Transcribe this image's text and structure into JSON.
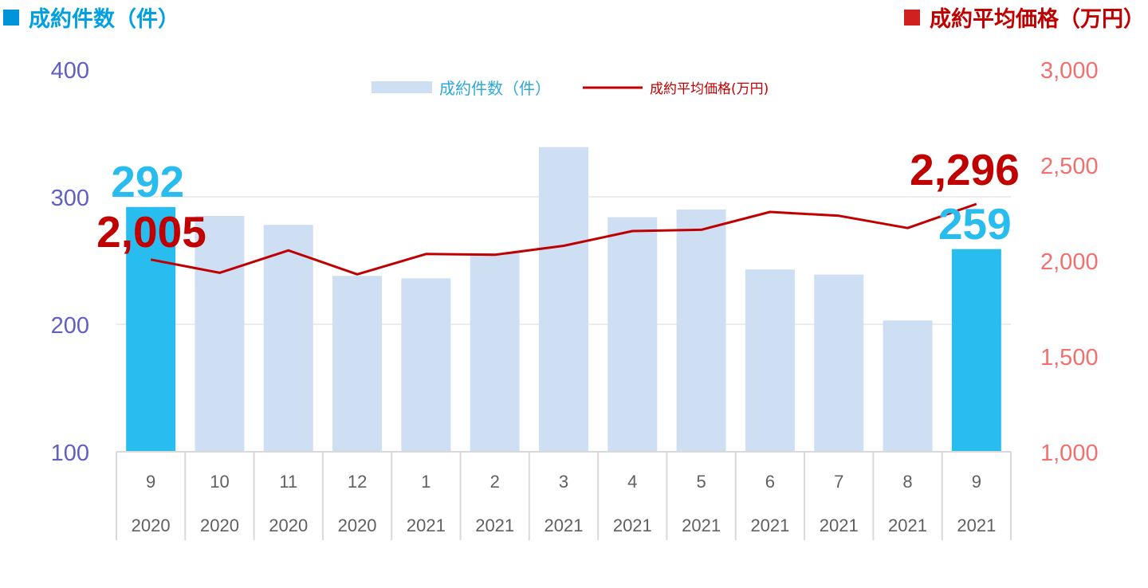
{
  "headers": {
    "left": {
      "label": "成約件数（件）"
    },
    "right": {
      "label": "成約平均価格（万円）"
    }
  },
  "colors": {
    "bar_highlight": "#29BDEF",
    "bar_normal": "#CFDFF3",
    "line": "#C00000",
    "left_axis_text": "#6060C0",
    "right_axis_text": "#F07070",
    "left_header": "#009FE0",
    "right_header": "#C00000",
    "left_header_square": "#0095D9",
    "right_header_square": "#D02020",
    "big_count_label": "#29BDEF",
    "big_price_label": "#C00000",
    "legend_bar_text": "#2DA8DC",
    "legend_line_text": "#C00000",
    "category_text": "#606060",
    "grid": "#D9D9D9"
  },
  "chart_data": {
    "type": "bar",
    "categories": [
      "9",
      "10",
      "11",
      "12",
      "1",
      "2",
      "3",
      "4",
      "5",
      "6",
      "7",
      "8",
      "9"
    ],
    "category_years": [
      "2020",
      "2020",
      "2020",
      "2020",
      "2021",
      "2021",
      "2021",
      "2021",
      "2021",
      "2021",
      "2021",
      "2021",
      "2021"
    ],
    "series": [
      {
        "name": "成約件数（件）",
        "type": "bar",
        "axis": "left",
        "values": [
          292,
          285,
          278,
          238,
          236,
          256,
          339,
          284,
          290,
          243,
          239,
          203,
          259
        ],
        "highlighted": [
          true,
          false,
          false,
          false,
          false,
          false,
          false,
          false,
          false,
          false,
          false,
          false,
          true
        ]
      },
      {
        "name": "成約平均価格(万円)",
        "type": "line",
        "axis": "right",
        "values": [
          2005,
          1936,
          2053,
          1928,
          2034,
          2030,
          2077,
          2154,
          2161,
          2254,
          2234,
          2170,
          2296
        ]
      }
    ],
    "left_axis": {
      "ylim": [
        100,
        400
      ],
      "ticks": [
        "100",
        "200",
        "300",
        "400"
      ]
    },
    "right_axis": {
      "ylim": [
        1000,
        3000
      ],
      "ticks": [
        "1,000",
        "1,500",
        "2,000",
        "2,500",
        "3,000"
      ]
    },
    "legend": {
      "placement": "top-center"
    },
    "grid": true,
    "annotations": {
      "first_count": "292",
      "last_count": "259",
      "first_price": "2,005",
      "last_price": "2,296"
    }
  }
}
